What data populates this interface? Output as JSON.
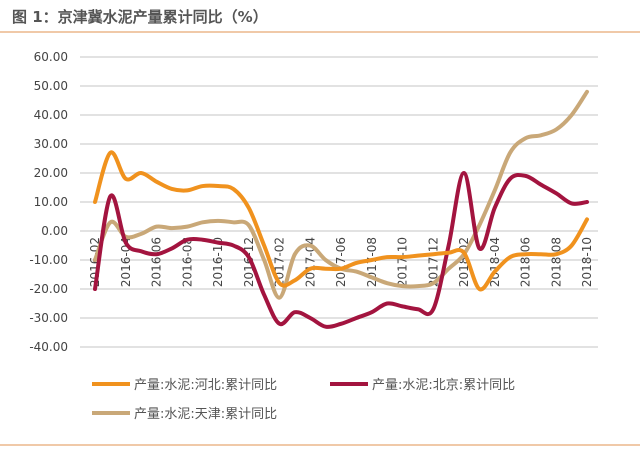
{
  "title": "图 1：京津冀水泥产量累计同比（%）",
  "chart_data": {
    "type": "line",
    "title": "图 1：京津冀水泥产量累计同比（%）",
    "xlabel": "",
    "ylabel": "",
    "ylim": [
      -40,
      60
    ],
    "yticks": [
      "60.00",
      "50.00",
      "40.00",
      "30.00",
      "20.00",
      "10.00",
      "0.00",
      "-10.00",
      "-20.00",
      "-30.00",
      "-40.00"
    ],
    "grid": true,
    "legend_position": "bottom",
    "x": [
      "2016-02",
      "2016-03",
      "2016-04",
      "2016-05",
      "2016-06",
      "2016-07",
      "2016-08",
      "2016-09",
      "2016-10",
      "2016-11",
      "2016-12",
      "2017-01",
      "2017-02",
      "2017-03",
      "2017-04",
      "2017-05",
      "2017-06",
      "2017-07",
      "2017-08",
      "2017-09",
      "2017-10",
      "2017-11",
      "2017-12",
      "2018-01",
      "2018-02",
      "2018-03",
      "2018-04",
      "2018-05",
      "2018-06",
      "2018-07",
      "2018-08",
      "2018-09",
      "2018-10"
    ],
    "xticks": [
      "2016-02",
      "2016-04",
      "2016-06",
      "2016-08",
      "2016-10",
      "2016-12",
      "2017-02",
      "2017-04",
      "2017-06",
      "2017-08",
      "2017-10",
      "2017-12",
      "2018-02",
      "2018-04",
      "2018-06",
      "2018-08",
      "2018-10"
    ],
    "series": [
      {
        "name": "产量:水泥:河北:累计同比",
        "color": "#f0921e",
        "values": [
          10,
          27,
          18,
          20,
          17,
          14.5,
          14,
          15.5,
          15.5,
          14.5,
          8,
          -5,
          -18,
          -17,
          -13,
          -13,
          -13,
          -11,
          -10,
          -9,
          -9,
          -8.5,
          -8,
          -7.5,
          -7.5,
          -20,
          -14,
          -9,
          -8,
          -8,
          -8,
          -5,
          4
        ]
      },
      {
        "name": "产量:水泥:北京:累计同比",
        "color": "#a3143f",
        "values": [
          -20,
          12,
          -4,
          -7,
          -8,
          -6,
          -3,
          -3,
          -4,
          -5,
          -9,
          -22,
          -32,
          -28,
          -30,
          -33,
          -32,
          -30,
          -28,
          -25,
          -26,
          -27,
          -27,
          -5,
          20,
          -6,
          8,
          18,
          19,
          16,
          13,
          9.5,
          10
        ]
      },
      {
        "name": "产量:水泥:天津:累计同比",
        "color": "#c9a878",
        "values": [
          -10,
          3,
          -2,
          -1,
          1.5,
          1,
          1.5,
          3,
          3.5,
          3,
          2,
          -10,
          -23,
          -8,
          -5,
          -10,
          -13,
          -14,
          -16,
          -18,
          -19,
          -19,
          -18,
          -13,
          -8,
          2,
          14,
          27,
          32,
          33,
          35,
          40,
          48
        ]
      }
    ]
  }
}
